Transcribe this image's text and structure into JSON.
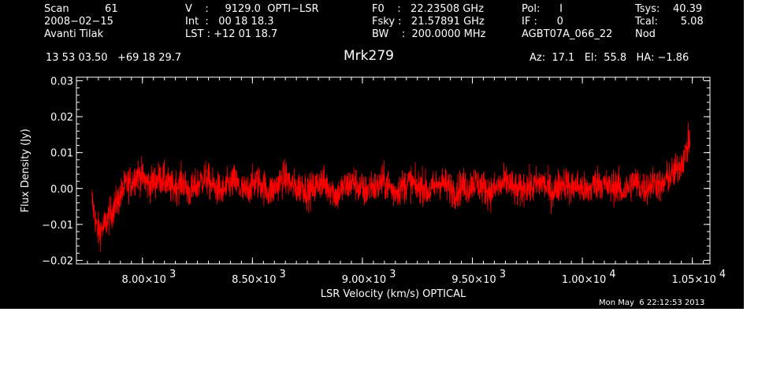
{
  "header": {
    "col1": [
      "Scan           61",
      "2008−02−15",
      "Avanti Tilak"
    ],
    "col2": [
      "V    :     9129.0  OPTI−LSR",
      "Int  :   00 18 18.3",
      "LST : +12 01 18.7"
    ],
    "col3": [
      "F0    :   22.23508 GHz",
      "Fsky :   21.57891 GHz",
      "BW    :  200.0000 MHz"
    ],
    "col4": [
      "Pol:      I",
      "IF :      0",
      "AGBT07A_066_22"
    ],
    "col5": [
      "Tsys:    40.39",
      "Tcal:       5.08",
      "Nod"
    ],
    "coords": "13 53 03.50   +69 18 29.7",
    "source": "Mrk279",
    "pointing": "Az:  17.1   El:  55.8   HA: −1.86"
  },
  "timestamp": "Mon May  6 22:12:53 2013",
  "colors": {
    "background": "#000000",
    "axes": "#ffffff",
    "trace": "#ff0000"
  },
  "chart_data": {
    "type": "line",
    "xlabel": "LSR Velocity (km/s) OPTICAL",
    "ylabel": "Flux Density (Jy)",
    "xlim": [
      7700,
      10580
    ],
    "ylim": [
      -0.021,
      0.031
    ],
    "x_tick_values": [
      8000,
      8500,
      9000,
      9500,
      10000,
      10500
    ],
    "x_tick_labels": [
      "8.00×10",
      "8.50×10",
      "9.00×10",
      "9.50×10",
      "1.00×10",
      "1.05×10"
    ],
    "x_tick_exponents": [
      "3",
      "3",
      "3",
      "3",
      "4",
      "4"
    ],
    "y_tick_values": [
      -0.02,
      -0.01,
      0.0,
      0.01,
      0.02,
      0.03
    ],
    "y_tick_labels": [
      "−0.02",
      "−0.01",
      "0.00",
      "0.01",
      "0.02",
      "0.03"
    ],
    "grid": false,
    "series": [
      {
        "x_range": [
          7770,
          10490
        ],
        "values": [
          -0.003,
          -0.012,
          -0.011,
          -0.008,
          -0.005,
          -0.002,
          0.001,
          0.002,
          0.004,
          0.003,
          0.001,
          0.002,
          0.003,
          0.002,
          0.0,
          0.001,
          0.002,
          -0.001,
          0.0,
          0.002,
          0.003,
          0.001,
          0.0,
          -0.001,
          0.001,
          0.002,
          0.0,
          -0.001,
          0.001,
          0.002,
          0.001,
          -0.001,
          0.0,
          0.002,
          0.003,
          0.001,
          0.0,
          0.001,
          -0.001,
          0.0,
          0.002,
          0.001,
          0.0,
          -0.002,
          0.0,
          0.001,
          0.002,
          0.0,
          -0.001,
          0.001,
          0.0,
          0.002,
          0.001,
          -0.001,
          0.0,
          0.001,
          0.002,
          0.0,
          0.001,
          -0.001,
          0.0,
          0.002,
          0.001,
          0.0,
          -0.001,
          0.001,
          0.0,
          0.002,
          0.001,
          0.0,
          -0.001,
          0.0,
          0.001,
          0.002,
          0.0,
          -0.001,
          0.001,
          0.0,
          0.001,
          0.002,
          0.0,
          -0.001,
          0.001,
          0.002,
          0.0,
          0.001,
          0.0,
          -0.001,
          0.001,
          0.002,
          0.001,
          0.0,
          0.001,
          -0.001,
          0.0,
          0.002,
          0.001,
          0.0,
          0.001,
          0.002,
          0.0,
          0.003,
          0.004,
          0.006,
          0.009,
          0.014
        ]
      }
    ]
  }
}
